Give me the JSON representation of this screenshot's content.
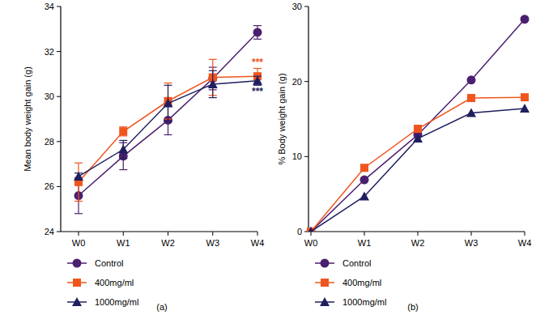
{
  "chart_data": [
    {
      "type": "line",
      "title": "(a)",
      "y_label": "Mean body weight gain (g)",
      "categories": [
        "W0",
        "W1",
        "W2",
        "W3",
        "W4"
      ],
      "ylim": [
        24,
        34
      ],
      "yticks": [
        24,
        26,
        28,
        30,
        32,
        34
      ],
      "legend": "bottom",
      "series": [
        {
          "name": "Control",
          "color": "#4b1f6f",
          "marker": "circle",
          "values": [
            25.6,
            27.35,
            28.95,
            30.8,
            32.85
          ],
          "errors": [
            0.8,
            0.6,
            0.65,
            0.5,
            0.3
          ]
        },
        {
          "name": "400mg/ml",
          "color": "#f0551e",
          "marker": "square",
          "values": [
            26.2,
            28.45,
            29.8,
            30.85,
            30.9
          ],
          "errors": [
            0.85,
            0.2,
            0.8,
            0.8,
            0.35
          ]
        },
        {
          "name": "1000mg/ml",
          "color": "#1f1f5f",
          "marker": "triangle",
          "values": [
            26.45,
            27.65,
            29.7,
            30.55,
            30.7
          ],
          "errors": [
            0.15,
            0.4,
            0.8,
            0.6,
            0.2
          ]
        }
      ],
      "annotations": [
        {
          "text": "***",
          "color": "#f0551e"
        },
        {
          "text": "***",
          "color": "#1f1f5f"
        }
      ]
    },
    {
      "type": "line",
      "title": "(b)",
      "y_label": "% Body weight gain (g)",
      "categories": [
        "W0",
        "W1",
        "W2",
        "W3",
        "W4"
      ],
      "ylim": [
        0,
        30
      ],
      "yticks": [
        0,
        10,
        20,
        30
      ],
      "legend": "bottom",
      "series": [
        {
          "name": "Control",
          "color": "#4b1f6f",
          "marker": "circle",
          "values": [
            0,
            6.9,
            12.9,
            20.2,
            28.3
          ]
        },
        {
          "name": "400mg/ml",
          "color": "#f0551e",
          "marker": "square",
          "values": [
            0,
            8.5,
            13.7,
            17.8,
            17.9
          ]
        },
        {
          "name": "1000mg/ml",
          "color": "#1f1f5f",
          "marker": "triangle",
          "values": [
            0,
            4.7,
            12.4,
            15.8,
            16.4
          ]
        }
      ]
    }
  ]
}
